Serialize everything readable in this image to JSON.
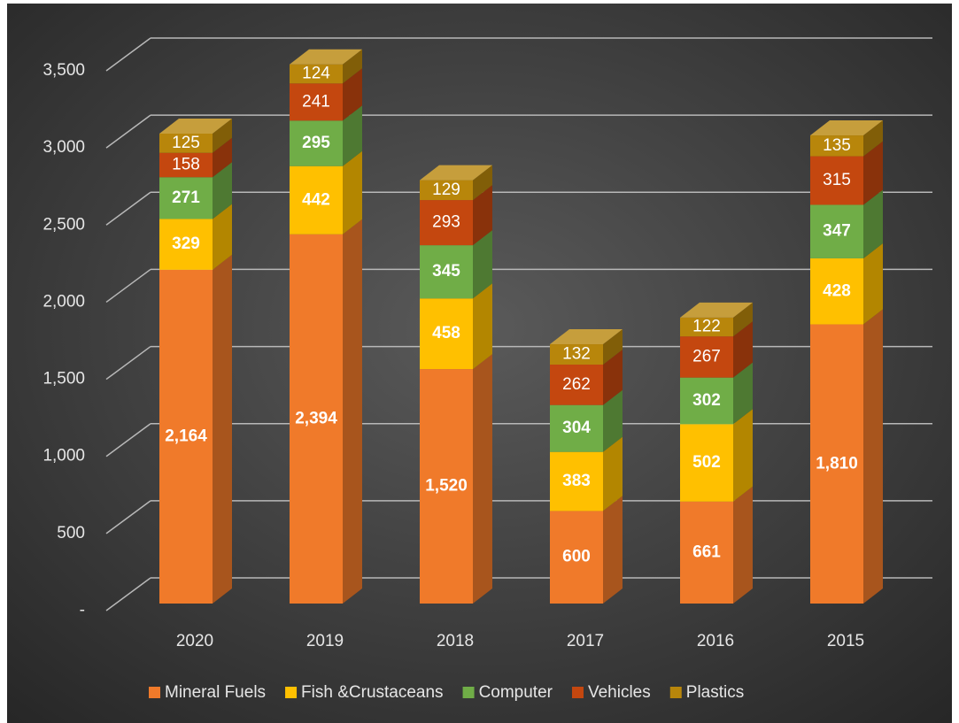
{
  "chart_data": {
    "type": "bar3d_stacked",
    "categories": [
      "2020",
      "2019",
      "2018",
      "2017",
      "2016",
      "2015"
    ],
    "series": [
      {
        "name": "Mineral Fuels",
        "color": "#f07a2a",
        "values": [
          2164,
          2394,
          1520,
          600,
          661,
          1810
        ],
        "value_labels": [
          "2,164",
          "2,394",
          "1,520",
          "600",
          "661",
          "1,810"
        ]
      },
      {
        "name": "Fish &Crustaceans",
        "color": "#ffc000",
        "values": [
          329,
          442,
          458,
          383,
          502,
          428
        ]
      },
      {
        "name": "Computer",
        "color": "#70ad47",
        "values": [
          271,
          295,
          345,
          304,
          302,
          347
        ]
      },
      {
        "name": "Vehicles",
        "color": "#c4470f",
        "values": [
          158,
          241,
          293,
          262,
          267,
          315
        ]
      },
      {
        "name": "Plastics",
        "color": "#b8860b",
        "values": [
          125,
          124,
          129,
          132,
          122,
          135
        ]
      }
    ],
    "ylim": [
      0,
      3500
    ],
    "yticks": [
      {
        "value": 0,
        "label": "-"
      },
      500,
      {
        "value": 1000,
        "label": "1,000"
      },
      {
        "value": 1500,
        "label": "1,500"
      },
      {
        "value": 2000,
        "label": "2,000"
      },
      {
        "value": 2500,
        "label": "2,500"
      },
      {
        "value": 3000,
        "label": "3,000"
      },
      {
        "value": 3500,
        "label": "3,500"
      }
    ],
    "grid": true,
    "legend": "bottom"
  }
}
